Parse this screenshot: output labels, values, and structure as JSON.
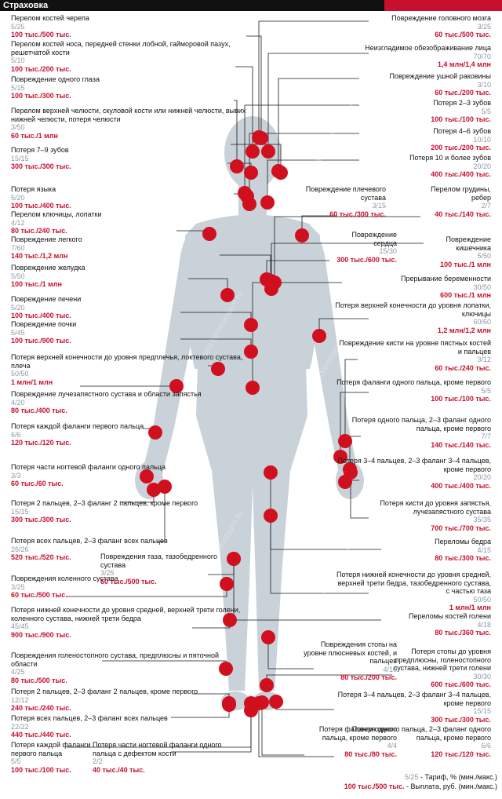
{
  "header": {
    "title": "Страховка",
    "bar_color": "#111111",
    "accent_color": "#c8102e"
  },
  "colors": {
    "point": "#d0101f",
    "silhouette": "#c9d2d9",
    "line": "#1a1a1a",
    "tariff": "#8a9aa8",
    "payout": "#c8102e"
  },
  "watermark": "www.kommersant.ru",
  "entries": [
    {
      "title": "Перелом костей черепа",
      "tariff": "5/25",
      "payout": "100 тыс./500 тыс."
    },
    {
      "title": "Перелом костей носа, передней стенки лобной, гайморовой пазух, решетчатой кости",
      "tariff": "5/10",
      "payout": "100 тыс./200 тыс."
    },
    {
      "title": "Повреждение одного глаза",
      "tariff": "5/15",
      "payout": "100 тыс./300 тыс."
    },
    {
      "title": "Перелом верхней челюсти, скуловой кости или нижней челюсти, вывих нижней челюсти, потеря челюсти",
      "tariff": "3/50",
      "payout": "60 тыс./1 млн"
    },
    {
      "title": "Потеря 7–9 зубов",
      "tariff": "15/15",
      "payout": "300 тыс./300 тыс."
    },
    {
      "title": "Потеря языка",
      "tariff": "5/20",
      "payout": "100 тыс./400 тыс."
    },
    {
      "title": "Перелом ключицы, лопатки",
      "tariff": "4/12",
      "payout": "80 тыс./240 тыс."
    },
    {
      "title": "Повреждение легкого",
      "tariff": "7/60",
      "payout": "140 тыс./1,2 млн"
    },
    {
      "title": "Повреждение желудка",
      "tariff": "5/50",
      "payout": "100 тыс./1 млн"
    },
    {
      "title": "Повреждение печени",
      "tariff": "5/20",
      "payout": "100 тыс./400 тыс."
    },
    {
      "title": "Повреждение почки",
      "tariff": "5/45",
      "payout": "100 тыс./900 тыс."
    },
    {
      "title": "Потеря верхней конечности до уровня предплечья, локтевого сустава, плеча",
      "tariff": "50/50",
      "payout": "1 млн/1 млн"
    },
    {
      "title": "Повреждение лучезапястного сустава и области запястья",
      "tariff": "4/20",
      "payout": "80 тыс./400 тыс."
    },
    {
      "title": "Потеря каждой фаланги первого пальца",
      "tariff": "6/6",
      "payout": "120 тыс./120 тыс."
    },
    {
      "title": "Потеря части ногтевой фаланги одного пальца",
      "tariff": "3/3",
      "payout": "60 тыс./60 тыс."
    },
    {
      "title": "Потеря 2 пальцев, 2–3 фаланг 2 пальцев, кроме первого",
      "tariff": "15/15",
      "payout": "300 тыс./300 тыс."
    },
    {
      "title": "Потеря всех пальцев, 2–3 фаланг всех пальцев",
      "tariff": "26/26",
      "payout": "520 тыс./520 тыс."
    },
    {
      "title": "Повреждения тазa, тазобедренного сустава",
      "tariff": "3/25",
      "payout": "60 тыс./500 тыс."
    },
    {
      "title": "Повреждения коленного сустава",
      "tariff": "3/25",
      "payout": "60 тыс./500 тыс."
    },
    {
      "title": "Потеря нижней конечности до уровня средней, верхней трети голени, коленного сустава, нижней трети бедра",
      "tariff": "45/45",
      "payout": "900 тыс./900 тыс."
    },
    {
      "title": "Повреждения голеностопного сустава, предплюсны и пяточной области",
      "tariff": "4/25",
      "payout": "80 тыс./500 тыс."
    },
    {
      "title": "Потеря 2 пальцев, 2–3 фаланг 2 пальцев, кроме первого",
      "tariff": "12/12",
      "payout": "240 тыс./240 тыс."
    },
    {
      "title": "Потеря всех пальцев, 2–3 фаланг всех пальцев",
      "tariff": "22/22",
      "payout": "440 тыс./440 тыс."
    },
    {
      "title": "Потеря каждой фаланги первого пальца",
      "tariff": "5/5",
      "payout": "100 тыс./100 тыс."
    },
    {
      "title": "Потеря части ногтевой фаланги одного пальца с дефектом кости",
      "tariff": "2/2",
      "payout": "40 тыс./40 тыс."
    },
    {
      "title": "Повреждение головного мозга",
      "tariff": "3/25",
      "payout": "60 тыс./500 тыс."
    },
    {
      "title": "Неизгладимое обезображивание лица",
      "tariff": "70/70",
      "payout": "1,4 млн/1,4 млн"
    },
    {
      "title": "Повреждение ушной раковины",
      "tariff": "3/10",
      "payout": "60 тыс./200 тыс."
    },
    {
      "title": "Потеря 2–3 зубов",
      "tariff": "5/5",
      "payout": "100 тыс./100 тыс."
    },
    {
      "title": "Потеря 4–6 зубов",
      "tariff": "10/10",
      "payout": "200 тыс./200 тыс."
    },
    {
      "title": "Потеря 10 и более зубов",
      "tariff": "20/20",
      "payout": "400 тыс./400 тыс."
    },
    {
      "title": "Повреждение плечевого сустава",
      "tariff": "3/15",
      "payout": "60 тыс./300 тыс."
    },
    {
      "title": "Перелом грудины, ребер",
      "tariff": "2/7",
      "payout": "40 тыс./140 тыс."
    },
    {
      "title": "Повреждение сердца",
      "tariff": "15/30",
      "payout": "300 тыс./600 тыс."
    },
    {
      "title": "Повреждение кишечника",
      "tariff": "5/50",
      "payout": "100 тыс./1 млн"
    },
    {
      "title": "Прерывание беременности",
      "tariff": "30/50",
      "payout": "600 тыс./1 млн"
    },
    {
      "title": "Потеря верхней конечности до уровня лопатки, ключицы",
      "tariff": "60/60",
      "payout": "1,2 млн/1,2 млн"
    },
    {
      "title": "Повреждение кисти на уровне пястных костей и пальцев",
      "tariff": "3/12",
      "payout": "60 тыс./240 тыс."
    },
    {
      "title": "Потеря фаланги одного пальца, кроме первого",
      "tariff": "5/5",
      "payout": "100 тыс./100 тыс."
    },
    {
      "title": "Потеря одного пальца, 2–3 фаланг одного пальца, кроме первого",
      "tariff": "7/7",
      "payout": "140 тыс./140 тыс."
    },
    {
      "title": "Потеря 3–4 пальцев, 2–3 фаланг 3–4 пальцев, кроме первого",
      "tariff": "20/20",
      "payout": "400 тыс./400 тыс."
    },
    {
      "title": "Потеря кисти до уровня запястья, лучезапястного сустава",
      "tariff": "35/35",
      "payout": "700 тыс./700 тыс."
    },
    {
      "title": "Переломы бедра",
      "tariff": "4/15",
      "payout": "80 тыс./300 тыс."
    },
    {
      "title": "Потеря нижней конечности до уровня средней, верхней трети бедра, тазобедренного сустава, с частью таза",
      "tariff": "50/50",
      "payout": "1 млн/1 млн"
    },
    {
      "title": "Переломы костей голени",
      "tariff": "4/18",
      "payout": "80 тыс./360 тыс."
    },
    {
      "title": "Повреждения стопы на уровне плюсневых костей, и пальцев",
      "tariff": "4/10",
      "payout": "80 тыс./200 тыс."
    },
    {
      "title": "Потеря стопы до уровня предплюсны, голеностопного сустава, нижней трети голени",
      "tariff": "30/30",
      "payout": "600 тыс./600 тыс."
    },
    {
      "title": "Потеря 3–4 пальцев, 2–3 фаланг 3–4 пальцев, кроме первого",
      "tariff": "15/15",
      "payout": "300 тыс./300 тыс."
    },
    {
      "title": "Потеря фаланги одного пальца, кроме первого",
      "tariff": "4/4",
      "payout": "80 тыс./80 тыс."
    },
    {
      "title": "Потеря одного пальца, 2–3 фаланг одного пальца, кроме первого",
      "tariff": "6/6",
      "payout": "120 тыс./120 тыс."
    }
  ],
  "legend": {
    "tariff_example": "5/25",
    "tariff_desc": " - Тариф, % (мин./макс.)",
    "payout_example": "100 тыс./500 тыс.",
    "payout_desc": " - Выплата, руб. (мин./макс.)"
  }
}
